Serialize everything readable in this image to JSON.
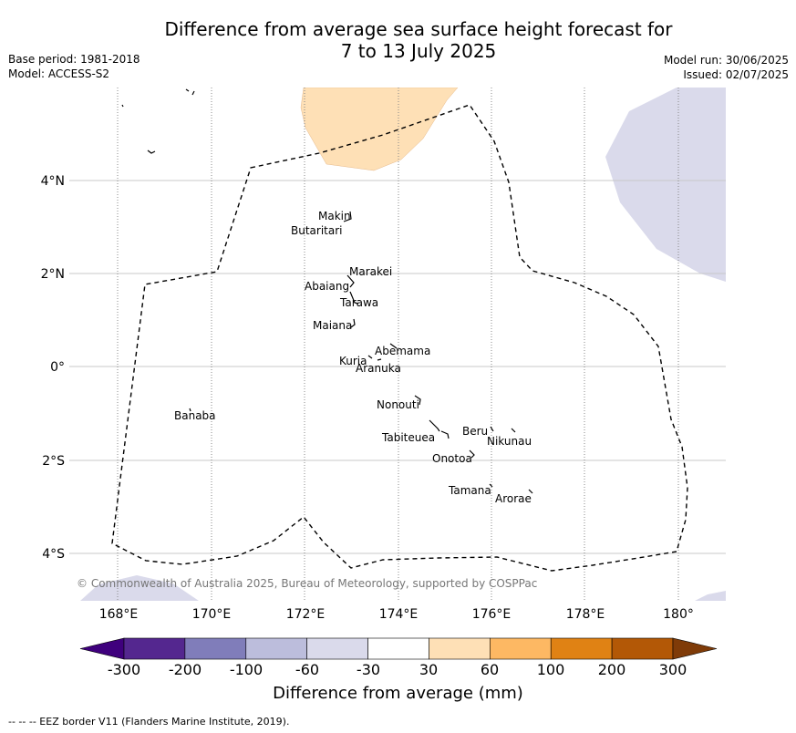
{
  "title_line1": "Difference from average sea surface height forecast for",
  "title_line2": "7 to 13 July 2025",
  "meta_left": {
    "base_period": "Base period: 1981-2018",
    "model": "Model: ACCESS-S2"
  },
  "meta_right": {
    "model_run": "Model run: 30/06/2025",
    "issued": "Issued: 02/07/2025"
  },
  "longitude_labels": [
    "168°E",
    "170°E",
    "172°E",
    "174°E",
    "176°E",
    "178°E",
    "180°"
  ],
  "latitude_labels": [
    "4°N",
    "2°N",
    "0°",
    "2°S",
    "4°S"
  ],
  "places": [
    {
      "name": "Makin"
    },
    {
      "name": "Butaritari"
    },
    {
      "name": "Marakei"
    },
    {
      "name": "Abaiang"
    },
    {
      "name": "Tarawa"
    },
    {
      "name": "Maiana"
    },
    {
      "name": "Abemama"
    },
    {
      "name": "Kuria"
    },
    {
      "name": "Aranuka"
    },
    {
      "name": "Banaba"
    },
    {
      "name": "Nonouti"
    },
    {
      "name": "Beru"
    },
    {
      "name": "Nikunau"
    },
    {
      "name": "Tabiteuea"
    },
    {
      "name": "Onotoa"
    },
    {
      "name": "Tamana"
    },
    {
      "name": "Arorae"
    }
  ],
  "copyright": "© Commonwealth of Australia 2025, Bureau of Meteorology, supported by COSPPac",
  "colorbar": {
    "label": "Difference from average (mm)",
    "ticks": [
      "-300",
      "-200",
      "-100",
      "-60",
      "-30",
      "30",
      "60",
      "100",
      "200",
      "300"
    ],
    "colors": [
      "#3f007d",
      "#54278f",
      "#807dba",
      "#bcbddc",
      "#dadaeb",
      "#ffffff",
      "#fee0b6",
      "#fdb863",
      "#e08214",
      "#b35806",
      "#7f3b08"
    ]
  },
  "footnote": "--  --  -- EEZ border V11 (Flanders Marine Institute, 2019)."
}
